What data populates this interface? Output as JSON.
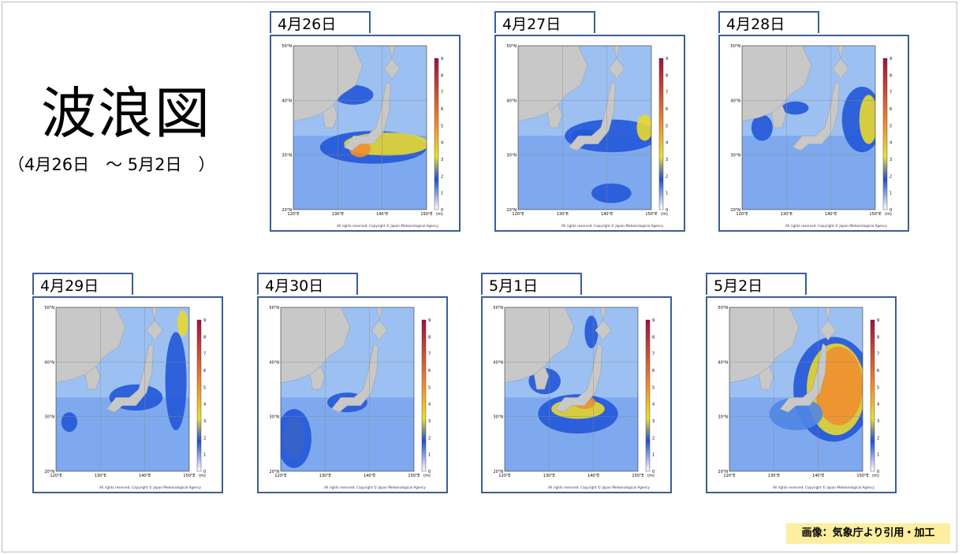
{
  "title": "波浪図",
  "period": "（4月26日　～ 5月2日　）",
  "panels": [
    {
      "label": "4月26日"
    },
    {
      "label": "4月27日"
    },
    {
      "label": "4月28日"
    },
    {
      "label": "4月29日"
    },
    {
      "label": "4月30日"
    },
    {
      "label": "5月1日"
    },
    {
      "label": "5月2日"
    }
  ],
  "map_axis": {
    "lat_labels": [
      "50°N",
      "40°N",
      "30°N",
      "20°N"
    ],
    "lon_labels": [
      "120°E",
      "130°E",
      "140°E",
      "150°E"
    ],
    "scale_ticks": [
      9,
      8,
      7,
      6,
      5,
      4,
      3,
      2,
      1,
      0
    ],
    "unit": "(m)",
    "copyright": "All rights reserved. Copyright © Japan Meteorological Agency"
  },
  "credit": "画像：気象庁より引用・加工"
}
